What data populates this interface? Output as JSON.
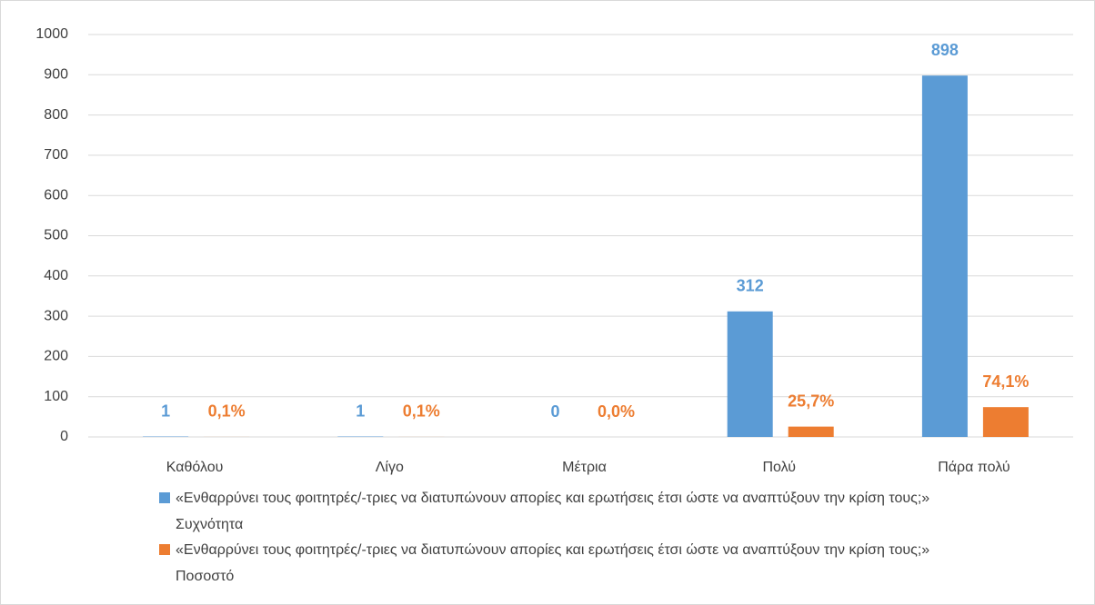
{
  "chart_data": {
    "type": "bar",
    "categories": [
      "Καθόλου",
      "Λίγο",
      "Μέτρια",
      "Πολύ",
      "Πάρα πολύ"
    ],
    "series": [
      {
        "name": "«Ενθαρρύνει τους φοιτητρές/-τριες να διατυπώνουν απορίες και ερωτήσεις έτσι ώστε να αναπτύξουν την κρίση τους;» Συχνότητα",
        "color": "#5b9bd5",
        "values": [
          1,
          1,
          0,
          312,
          898
        ]
      },
      {
        "name": "«Ενθαρρύνει τους φοιτητρές/-τριες να διατυπώνουν απορίες και ερωτήσεις έτσι ώστε να αναπτύξουν την κρίση τους;» Ποσοστό",
        "color": "#ed7d31",
        "values": [
          0.1,
          0.1,
          0.0,
          25.7,
          74.1
        ],
        "value_labels": [
          "0,1%",
          "0,1%",
          "0,0%",
          "25,7%",
          "74,1%"
        ]
      }
    ],
    "ylim": [
      0,
      1000
    ],
    "yticks": [
      0,
      100,
      200,
      300,
      400,
      500,
      600,
      700,
      800,
      900,
      1000
    ],
    "grid": true,
    "legend": "bottom"
  }
}
